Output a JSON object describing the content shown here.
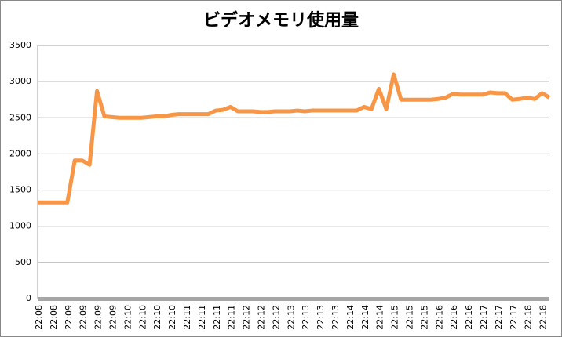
{
  "chart_data": {
    "type": "line",
    "title": "ビデオメモリ使用量",
    "categories": [
      "22:08",
      null,
      "22:08",
      null,
      "22:09",
      null,
      "22:09",
      null,
      "22:09",
      null,
      "22:09",
      null,
      "22:10",
      null,
      "22:10",
      null,
      "22:10",
      null,
      "22:10",
      null,
      "22:11",
      null,
      "22:11",
      null,
      "22:11",
      null,
      "22:11",
      null,
      "22:12",
      null,
      "22:12",
      null,
      "22:12",
      null,
      "22:13",
      null,
      "22:13",
      null,
      "22:13",
      null,
      "22:13",
      null,
      "22:14",
      null,
      "22:14",
      null,
      "22:14",
      null,
      "22:15",
      null,
      "22:15",
      null,
      "22:15",
      null,
      "22:16",
      null,
      "22:16",
      null,
      "22:16",
      null,
      "22:17",
      null,
      "22:17",
      null,
      "22:17",
      null,
      "22:18",
      null,
      "22:18",
      null
    ],
    "series": [
      {
        "name": "ビデオメモリ使用量",
        "color": "#f79646",
        "values": [
          1330,
          1330,
          1330,
          1330,
          1330,
          1910,
          1910,
          1850,
          2870,
          2520,
          2510,
          2500,
          2500,
          2500,
          2500,
          2510,
          2520,
          2520,
          2540,
          2550,
          2550,
          2550,
          2550,
          2550,
          2600,
          2610,
          2650,
          2590,
          2590,
          2590,
          2580,
          2580,
          2590,
          2590,
          2590,
          2600,
          2590,
          2600,
          2600,
          2600,
          2600,
          2600,
          2600,
          2600,
          2650,
          2620,
          2900,
          2620,
          3100,
          2750,
          2750,
          2750,
          2750,
          2750,
          2760,
          2780,
          2830,
          2820,
          2820,
          2820,
          2820,
          2850,
          2840,
          2840,
          2750,
          2760,
          2780,
          2760,
          2840,
          2780
        ]
      }
    ],
    "ylim": [
      0,
      3500
    ],
    "yticks": [
      0,
      500,
      1000,
      1500,
      2000,
      2500,
      3000,
      3500
    ],
    "grid": true
  }
}
